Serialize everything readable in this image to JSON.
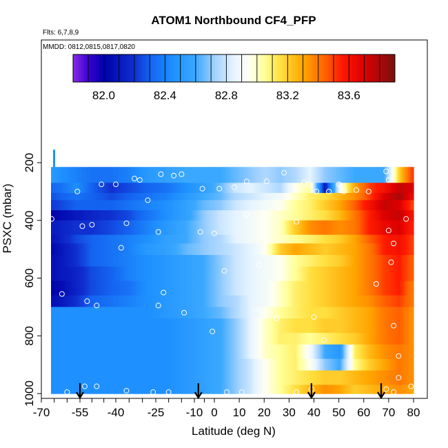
{
  "chart_data": {
    "type": "heatmap",
    "title": "ATOM1 Northbound CF4_PFP",
    "subtitle_flights": "Flts: 6,7,8,9",
    "subtitle_dates": "MMDD: 0812,0815,0817,0820",
    "xlabel": "Latitude (deg N)",
    "ylabel": "PSXC (mbar)",
    "xlim": [
      -70,
      80
    ],
    "ylim": [
      1000,
      0
    ],
    "x_ticks": [
      -70,
      -55,
      -40,
      -25,
      -10,
      0,
      10,
      20,
      30,
      40,
      50,
      60,
      70,
      80
    ],
    "x_tick_labels": [
      "-70",
      "-55",
      "-40",
      "-25",
      "-10",
      "0",
      "10",
      "20",
      "30",
      "40",
      "50",
      "60",
      "70",
      "80"
    ],
    "y_ticks": [
      200,
      400,
      600,
      800,
      1000
    ],
    "y_tick_labels": [
      "200",
      "400",
      "600",
      "800",
      "1000"
    ],
    "colorbar": {
      "range": [
        81.8,
        83.9
      ],
      "ticks": [
        82.0,
        82.4,
        82.8,
        83.2,
        83.6
      ],
      "tick_labels": [
        "82.0",
        "82.4",
        "82.8",
        "83.2",
        "83.6"
      ],
      "stops": [
        {
          "v": 81.8,
          "color": "#8a2be2"
        },
        {
          "v": 81.9,
          "color": "#3a00d6"
        },
        {
          "v": 82.0,
          "color": "#0000a8"
        },
        {
          "v": 82.2,
          "color": "#1030d0"
        },
        {
          "v": 82.3,
          "color": "#1463f0"
        },
        {
          "v": 82.45,
          "color": "#1e90ff"
        },
        {
          "v": 82.6,
          "color": "#3aa8ff"
        },
        {
          "v": 82.72,
          "color": "#9fd0ff"
        },
        {
          "v": 82.85,
          "color": "#e6f4ff"
        },
        {
          "v": 82.95,
          "color": "#fffff2"
        },
        {
          "v": 83.05,
          "color": "#ffff99"
        },
        {
          "v": 83.15,
          "color": "#ffe040"
        },
        {
          "v": 83.3,
          "color": "#ffa500"
        },
        {
          "v": 83.45,
          "color": "#ff6000"
        },
        {
          "v": 83.55,
          "color": "#ff1a00"
        },
        {
          "v": 83.7,
          "color": "#dd0000"
        },
        {
          "v": 83.9,
          "color": "#7a1010"
        }
      ]
    },
    "profile_latitudes": [
      -55,
      -8,
      39,
      67
    ],
    "band_pressure_edges": [
      215,
      270,
      305,
      330,
      365,
      400,
      450,
      480,
      520,
      560,
      610,
      660,
      700,
      740,
      790,
      830,
      880,
      920,
      970,
      1000
    ],
    "lat_knots": [
      -68,
      -62,
      -56,
      -50,
      -42,
      -35,
      -28,
      -20,
      -12,
      -5,
      2,
      8,
      14,
      20,
      26,
      32,
      38,
      44,
      50,
      56,
      62,
      68,
      74,
      79
    ],
    "grid": [
      [
        82.55,
        82.45,
        82.4,
        82.35,
        82.35,
        82.4,
        82.5,
        82.55,
        82.6,
        82.6,
        82.6,
        82.65,
        82.7,
        82.75,
        82.7,
        82.75,
        82.85,
        82.7,
        82.65,
        82.6,
        82.6,
        82.6,
        83.2,
        83.5
      ],
      [
        82.3,
        82.35,
        82.45,
        82.3,
        82.2,
        82.25,
        82.3,
        82.35,
        82.45,
        82.55,
        82.65,
        82.8,
        82.85,
        82.8,
        82.75,
        82.95,
        83.05,
        82.1,
        82.9,
        83.3,
        83.5,
        83.6,
        83.75,
        83.7
      ],
      [
        82.25,
        82.3,
        82.35,
        82.3,
        82.25,
        82.3,
        82.35,
        82.4,
        82.5,
        82.6,
        82.65,
        82.75,
        82.8,
        82.85,
        82.9,
        83.0,
        83.1,
        83.15,
        83.25,
        83.35,
        83.5,
        83.7,
        83.8,
        83.65
      ],
      [
        82.2,
        82.25,
        82.3,
        82.3,
        82.3,
        82.35,
        82.4,
        82.45,
        82.55,
        82.65,
        82.7,
        82.8,
        82.85,
        82.9,
        82.95,
        83.05,
        83.1,
        83.2,
        83.3,
        83.45,
        83.6,
        83.75,
        83.7,
        83.5
      ],
      [
        82.0,
        82.05,
        82.1,
        82.15,
        82.2,
        82.25,
        82.35,
        82.45,
        82.55,
        82.7,
        82.8,
        82.85,
        82.9,
        82.95,
        83.0,
        83.05,
        83.1,
        83.15,
        83.25,
        83.4,
        83.55,
        83.7,
        83.75,
        83.6
      ],
      [
        82.1,
        82.15,
        82.2,
        82.2,
        82.25,
        82.3,
        82.4,
        82.5,
        82.6,
        82.7,
        82.8,
        82.85,
        82.9,
        82.95,
        83.0,
        83.2,
        83.35,
        83.4,
        83.35,
        83.4,
        83.55,
        83.65,
        83.7,
        83.55
      ],
      [
        82.05,
        82.15,
        82.25,
        82.3,
        82.35,
        82.4,
        82.45,
        82.55,
        82.6,
        82.7,
        82.75,
        82.85,
        82.9,
        82.95,
        83.0,
        83.05,
        83.1,
        83.15,
        83.2,
        83.3,
        83.45,
        83.55,
        83.6,
        83.5
      ],
      [
        82.0,
        82.1,
        82.2,
        82.3,
        82.35,
        82.4,
        82.5,
        82.55,
        82.65,
        82.7,
        82.75,
        82.8,
        82.85,
        82.95,
        83.2,
        83.3,
        83.25,
        83.2,
        83.25,
        83.3,
        83.4,
        83.55,
        83.6,
        83.5
      ],
      [
        82.05,
        82.1,
        82.2,
        82.3,
        82.35,
        82.4,
        82.45,
        82.5,
        82.55,
        82.6,
        82.7,
        82.8,
        82.85,
        82.9,
        82.95,
        83.05,
        83.1,
        83.15,
        83.2,
        83.3,
        83.4,
        83.5,
        83.55,
        83.45
      ],
      [
        82.05,
        82.1,
        82.15,
        82.25,
        82.3,
        82.4,
        82.45,
        82.5,
        82.55,
        82.6,
        82.7,
        82.8,
        82.85,
        82.9,
        82.95,
        83.05,
        83.15,
        83.2,
        83.25,
        83.3,
        83.4,
        83.5,
        83.55,
        83.45
      ],
      [
        82.0,
        82.05,
        82.15,
        82.25,
        82.3,
        82.35,
        82.45,
        82.5,
        82.55,
        82.6,
        82.7,
        82.8,
        82.85,
        82.9,
        83.0,
        83.1,
        83.15,
        83.2,
        83.25,
        83.3,
        83.4,
        83.5,
        83.55,
        83.4
      ],
      [
        82.05,
        82.1,
        82.2,
        82.3,
        82.35,
        82.4,
        82.45,
        82.5,
        82.55,
        82.6,
        82.7,
        82.75,
        82.85,
        82.9,
        83.0,
        83.1,
        83.15,
        83.2,
        83.25,
        83.3,
        83.35,
        83.45,
        83.5,
        83.4
      ],
      [
        82.45,
        82.45,
        82.45,
        82.45,
        82.45,
        82.45,
        82.45,
        82.5,
        82.55,
        82.6,
        82.65,
        82.75,
        82.85,
        82.95,
        83.05,
        83.1,
        83.15,
        83.15,
        83.2,
        83.25,
        83.3,
        83.4,
        83.45,
        83.35
      ],
      [
        82.45,
        82.45,
        82.45,
        82.45,
        82.45,
        82.45,
        82.45,
        82.45,
        82.5,
        82.55,
        82.6,
        82.7,
        82.85,
        83.0,
        83.1,
        83.15,
        83.15,
        83.2,
        83.2,
        83.25,
        83.3,
        83.4,
        83.45,
        83.35
      ],
      [
        82.45,
        82.45,
        82.45,
        82.45,
        82.45,
        82.45,
        82.45,
        82.45,
        82.5,
        82.55,
        82.6,
        82.7,
        82.85,
        83.0,
        83.1,
        83.1,
        83.05,
        83.1,
        83.15,
        83.2,
        83.3,
        83.4,
        83.45,
        83.35
      ],
      [
        82.45,
        82.45,
        82.45,
        82.45,
        82.45,
        82.45,
        82.45,
        82.45,
        82.5,
        82.55,
        82.6,
        82.7,
        82.85,
        83.0,
        83.05,
        83.1,
        82.9,
        82.6,
        82.5,
        83.1,
        83.25,
        83.35,
        83.4,
        83.35
      ],
      [
        82.45,
        82.45,
        82.45,
        82.45,
        82.45,
        82.45,
        82.45,
        82.45,
        82.5,
        82.55,
        82.6,
        82.7,
        82.8,
        82.95,
        83.05,
        83.1,
        82.95,
        82.7,
        82.6,
        83.05,
        83.2,
        83.3,
        83.4,
        83.35
      ],
      [
        82.45,
        82.45,
        82.45,
        82.45,
        82.45,
        82.45,
        82.45,
        82.45,
        82.5,
        82.55,
        82.6,
        82.7,
        82.8,
        82.95,
        83.05,
        83.1,
        83.15,
        83.2,
        83.2,
        83.25,
        83.3,
        83.35,
        83.4,
        83.35
      ],
      [
        82.45,
        82.45,
        82.45,
        82.45,
        82.45,
        82.45,
        82.45,
        82.45,
        82.5,
        82.55,
        82.6,
        82.7,
        82.8,
        82.95,
        83.05,
        83.15,
        83.25,
        83.35,
        83.3,
        83.2,
        83.25,
        83.3,
        83.35,
        83.3
      ]
    ],
    "sample_points": [
      {
        "lat": -68,
        "p": 985
      },
      {
        "lat": -60,
        "p": 995
      },
      {
        "lat": -53,
        "p": 975
      },
      {
        "lat": -48,
        "p": 975
      },
      {
        "lat": -36,
        "p": 990
      },
      {
        "lat": -26,
        "p": 995
      },
      {
        "lat": -20,
        "p": 995
      },
      {
        "lat": 5,
        "p": 995
      },
      {
        "lat": 11,
        "p": 995
      },
      {
        "lat": 33,
        "p": 995
      },
      {
        "lat": 39,
        "p": 985
      },
      {
        "lat": 69,
        "p": 985
      },
      {
        "lat": 72,
        "p": 995
      },
      {
        "lat": 79,
        "p": 975
      },
      {
        "lat": 74,
        "p": 945
      },
      {
        "lat": 74,
        "p": 870
      },
      {
        "lat": 72,
        "p": 765
      },
      {
        "lat": 44,
        "p": 815
      },
      {
        "lat": -1,
        "p": 785
      },
      {
        "lat": -14,
        "p": 720
      },
      {
        "lat": -24,
        "p": 695
      },
      {
        "lat": -48,
        "p": 695
      },
      {
        "lat": -52,
        "p": 680
      },
      {
        "lat": -62,
        "p": 655
      },
      {
        "lat": -22,
        "p": 650
      },
      {
        "lat": 25,
        "p": 740
      },
      {
        "lat": 40,
        "p": 735
      },
      {
        "lat": 4,
        "p": 575
      },
      {
        "lat": 18,
        "p": 555
      },
      {
        "lat": 65,
        "p": 620
      },
      {
        "lat": 71,
        "p": 545
      },
      {
        "lat": 72,
        "p": 480
      },
      {
        "lat": 70,
        "p": 435
      },
      {
        "lat": 77,
        "p": 395
      },
      {
        "lat": -38,
        "p": 495
      },
      {
        "lat": -36,
        "p": 410
      },
      {
        "lat": -24,
        "p": 440
      },
      {
        "lat": -7,
        "p": 440
      },
      {
        "lat": 0,
        "p": 445
      },
      {
        "lat": 13,
        "p": 380
      },
      {
        "lat": 33,
        "p": 405
      },
      {
        "lat": -54,
        "p": 420
      },
      {
        "lat": -50,
        "p": 415
      },
      {
        "lat": -66,
        "p": 395
      },
      {
        "lat": -28,
        "p": 330
      },
      {
        "lat": -56,
        "p": 300
      },
      {
        "lat": -46,
        "p": 275
      },
      {
        "lat": -40,
        "p": 275
      },
      {
        "lat": -33,
        "p": 255
      },
      {
        "lat": -31,
        "p": 260
      },
      {
        "lat": -23,
        "p": 240
      },
      {
        "lat": -18,
        "p": 245
      },
      {
        "lat": -15,
        "p": 240
      },
      {
        "lat": -6,
        "p": 290
      },
      {
        "lat": 2,
        "p": 290
      },
      {
        "lat": 8,
        "p": 285
      },
      {
        "lat": 13,
        "p": 265
      },
      {
        "lat": 21,
        "p": 265
      },
      {
        "lat": 28,
        "p": 235
      },
      {
        "lat": 36,
        "p": 270
      },
      {
        "lat": 38,
        "p": 275
      },
      {
        "lat": 41,
        "p": 300
      },
      {
        "lat": 46,
        "p": 300
      },
      {
        "lat": 50,
        "p": 275
      },
      {
        "lat": 52,
        "p": 300
      },
      {
        "lat": 57,
        "p": 295
      },
      {
        "lat": 62,
        "p": 300
      },
      {
        "lat": 69,
        "p": 230
      },
      {
        "lat": 70,
        "p": 260
      }
    ],
    "grid_lines": "off",
    "legend": "colorbar top, horizontal"
  }
}
